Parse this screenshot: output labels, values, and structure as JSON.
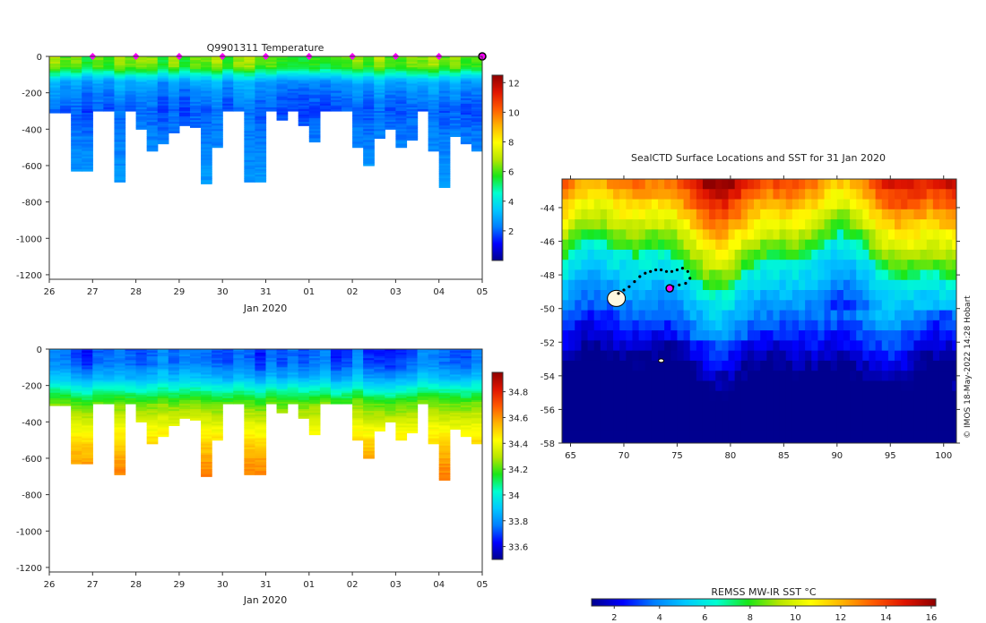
{
  "colors": {
    "jet": [
      "#00008f",
      "#0000ff",
      "#007fff",
      "#00c8ff",
      "#00ffd0",
      "#19e619",
      "#b7e600",
      "#ffff00",
      "#ffb400",
      "#ff5a00",
      "#e01400",
      "#8f0000"
    ],
    "profile_marker": "#ff00ff",
    "track": "#000000",
    "axis": "#333333"
  },
  "chart_data": [
    {
      "id": "temperature",
      "type": "heatmap",
      "title": "Q9901311  Temperature",
      "xlabel": "Jan 2020",
      "ylabel": "",
      "x_tick_labels": [
        "26",
        "27",
        "28",
        "29",
        "30",
        "31",
        "01",
        "02",
        "03",
        "04",
        "05"
      ],
      "xlim_days": [
        0,
        10
      ],
      "ylim": [
        -1225,
        0
      ],
      "y_ticks": [
        0,
        -200,
        -400,
        -600,
        -800,
        -1000,
        -1200
      ],
      "surface_marker_days": [
        1,
        2,
        3,
        4,
        5,
        6,
        7,
        8,
        9
      ],
      "last_profile_day": 10,
      "profile_max_depths": [
        310,
        310,
        630,
        630,
        300,
        300,
        690,
        300,
        400,
        520,
        480,
        420,
        380,
        390,
        700,
        500,
        300,
        300,
        690,
        690,
        300,
        350,
        300,
        380,
        470,
        300,
        300,
        300,
        500,
        600,
        450,
        400,
        500,
        460,
        300,
        520,
        720,
        440,
        480,
        520
      ],
      "colorbar": {
        "min": 0,
        "max": 12.5,
        "ticks": [
          2,
          4,
          6,
          8,
          10,
          12
        ]
      },
      "depth_value_profile": [
        [
          0,
          6.3
        ],
        [
          60,
          6.0
        ],
        [
          100,
          4.4
        ],
        [
          140,
          2.9
        ],
        [
          200,
          2.4
        ],
        [
          300,
          1.9
        ],
        [
          450,
          2.3
        ],
        [
          720,
          2.7
        ]
      ]
    },
    {
      "id": "salinity",
      "type": "heatmap",
      "title": "",
      "xlabel": "Jan 2020",
      "ylabel": "",
      "x_tick_labels": [
        "26",
        "27",
        "28",
        "29",
        "30",
        "31",
        "01",
        "02",
        "03",
        "04",
        "05"
      ],
      "xlim_days": [
        0,
        10
      ],
      "ylim": [
        -1225,
        0
      ],
      "y_ticks": [
        0,
        -200,
        -400,
        -600,
        -800,
        -1000,
        -1200
      ],
      "profile_max_depths": [
        310,
        310,
        630,
        630,
        300,
        300,
        690,
        300,
        400,
        520,
        480,
        420,
        380,
        390,
        700,
        500,
        300,
        300,
        690,
        690,
        300,
        350,
        300,
        380,
        470,
        300,
        300,
        300,
        500,
        600,
        450,
        400,
        500,
        460,
        300,
        520,
        720,
        440,
        480,
        520
      ],
      "colorbar": {
        "min": 33.5,
        "max": 34.95,
        "ticks": [
          33.6,
          33.8,
          34,
          34.2,
          34.4,
          34.6,
          34.8
        ]
      },
      "colorbar_tick_labels": [
        "33.6",
        "33.8",
        "34",
        "34.2",
        "34.4",
        "34.6",
        "34.8"
      ],
      "depth_value_profile": [
        [
          0,
          33.72
        ],
        [
          80,
          33.74
        ],
        [
          160,
          33.86
        ],
        [
          230,
          34.05
        ],
        [
          300,
          34.22
        ],
        [
          420,
          34.38
        ],
        [
          520,
          34.5
        ],
        [
          640,
          34.6
        ],
        [
          720,
          34.64
        ]
      ]
    },
    {
      "id": "sst_map",
      "type": "heatmap",
      "title": "SealCTD Surface Locations and SST for 31 Jan 2020",
      "xlabel": "",
      "ylabel": "",
      "x_tick_labels": [
        "65",
        "70",
        "75",
        "80",
        "85",
        "90",
        "95",
        "100"
      ],
      "y_tick_labels": [
        "-44",
        "-46",
        "-48",
        "-50",
        "-52",
        "-54",
        "-56",
        "-58"
      ],
      "lon_range": [
        64.2,
        101.2
      ],
      "lat_range": [
        -58,
        -42.3
      ],
      "track_points_lonlat": [
        [
          69.5,
          -49.1
        ],
        [
          70.0,
          -48.9
        ],
        [
          70.5,
          -48.7
        ],
        [
          71.0,
          -48.4
        ],
        [
          71.5,
          -48.1
        ],
        [
          72.0,
          -47.9
        ],
        [
          72.5,
          -47.8
        ],
        [
          73.0,
          -47.7
        ],
        [
          73.5,
          -47.7
        ],
        [
          74.0,
          -47.8
        ],
        [
          74.5,
          -47.8
        ],
        [
          75.0,
          -47.7
        ],
        [
          75.5,
          -47.6
        ],
        [
          76.0,
          -47.8
        ],
        [
          76.2,
          -48.2
        ],
        [
          75.8,
          -48.5
        ],
        [
          75.2,
          -48.6
        ],
        [
          74.6,
          -48.7
        ],
        [
          74.3,
          -48.8
        ]
      ],
      "current_position_lonlat": [
        74.3,
        -48.8
      ],
      "colorbar_label": "REMSS MW-IR SST °C",
      "colorbar": {
        "min": 1,
        "max": 16.2,
        "ticks": [
          2,
          4,
          6,
          8,
          10,
          12,
          14,
          16
        ]
      },
      "credit": "© IMOS 18-May-2022 14:28 Hobart"
    }
  ]
}
